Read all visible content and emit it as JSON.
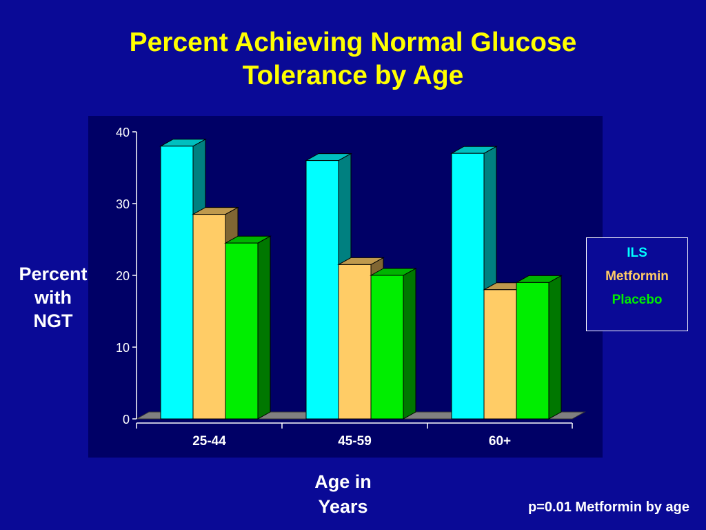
{
  "title": {
    "line1": "Percent Achieving Normal Glucose",
    "line2": "Tolerance by Age"
  },
  "y_label": [
    "Percent",
    "with",
    "NGT"
  ],
  "x_label": [
    "Age in",
    "Years"
  ],
  "footnote": "p=0.01  Metformin by age",
  "colors": {
    "ILS": "#00ffff",
    "Metformin": "#ffcc66",
    "Placebo": "#00ee00",
    "background": "#0a0a96",
    "plot_background": "#000066",
    "title": "#ffff00"
  },
  "chart_data": {
    "type": "bar",
    "title": "Percent Achieving Normal Glucose Tolerance by Age",
    "xlabel": "Age in Years",
    "ylabel": "Percent with NGT",
    "categories": [
      "25-44",
      "45-59",
      "60+"
    ],
    "series": [
      {
        "name": "ILS",
        "values": [
          38,
          36,
          37
        ]
      },
      {
        "name": "Metformin",
        "values": [
          28.5,
          21.5,
          18
        ]
      },
      {
        "name": "Placebo",
        "values": [
          24.5,
          20,
          19
        ]
      }
    ],
    "ylim": [
      0,
      40
    ],
    "yticks": [
      0,
      10,
      20,
      30,
      40
    ],
    "grid": false,
    "style": "3d",
    "legend_position": "right"
  },
  "legend": {
    "items": [
      {
        "label": "ILS",
        "color": "#00ffff"
      },
      {
        "label": "Metformin",
        "color": "#ffcc66"
      },
      {
        "label": "Placebo",
        "color": "#00ee00"
      }
    ]
  }
}
